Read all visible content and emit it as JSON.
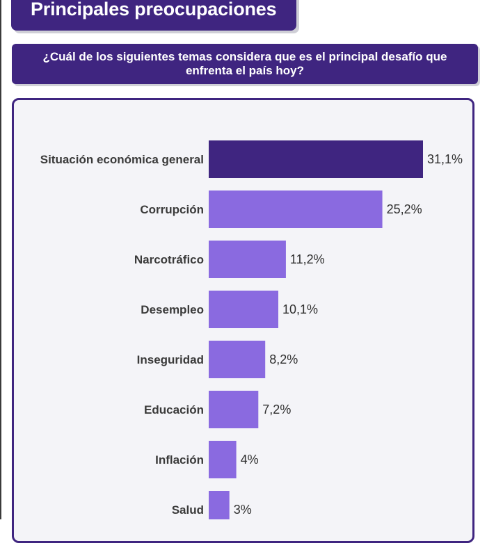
{
  "header": {
    "title": "Principales preocupaciones",
    "question": "¿Cuál de los siguientes temas considera que es el principal desafío que enfrenta el país hoy?"
  },
  "colors": {
    "banner": "#3f2580",
    "highlight_bar": "#3f2580",
    "bar": "#8a6ae0",
    "card_bg": "#f4f4f8"
  },
  "chart_data": {
    "type": "bar",
    "orientation": "horizontal",
    "categories": [
      "Situación económica general",
      "Corrupción",
      "Narcotráfico",
      "Desempleo",
      "Inseguridad",
      "Educación",
      "Inflación",
      "Salud"
    ],
    "values": [
      31.1,
      25.2,
      11.2,
      10.1,
      8.2,
      7.2,
      4,
      3
    ],
    "value_labels": [
      "31,1%",
      "25,2%",
      "11,2%",
      "10,1%",
      "8,2%",
      "7,2%",
      "4%",
      "3%"
    ],
    "highlight_index": 0,
    "unit": "%",
    "xlim": [
      0,
      31.1
    ],
    "grid": false,
    "legend": "none"
  }
}
